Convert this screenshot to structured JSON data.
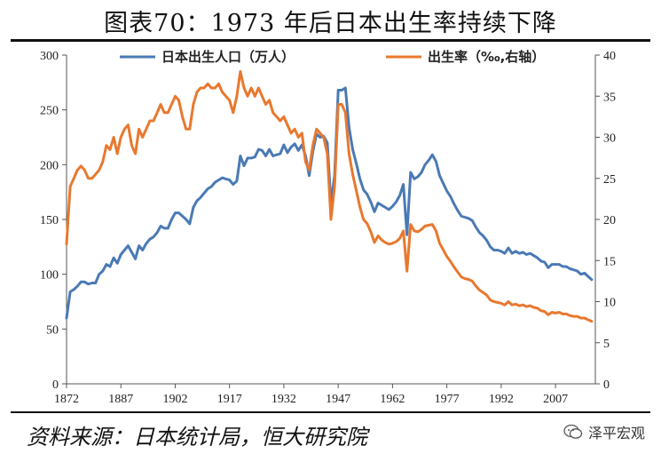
{
  "title": "图表70：1973 年后日本出生率持续下降",
  "source": "资料来源：日本统计局，恒大研究院",
  "watermark": "泽平宏观",
  "chart_data": {
    "type": "line",
    "left_axis": {
      "min": 0,
      "max": 300,
      "ticks": [
        "0",
        "50",
        "100",
        "150",
        "200",
        "250",
        "300"
      ]
    },
    "right_axis": {
      "min": 0,
      "max": 40,
      "ticks": [
        "0",
        "5",
        "10",
        "15",
        "20",
        "25",
        "30",
        "35",
        "40"
      ]
    },
    "x_axis": {
      "min": 1872,
      "max": 2018,
      "ticks": [
        "1872",
        "1887",
        "1902",
        "1917",
        "1932",
        "1947",
        "1962",
        "1977",
        "1992",
        "2007"
      ]
    },
    "grid": false,
    "legend_position": "top",
    "series": [
      {
        "name": "日本出生人口（万人）",
        "axis": "left",
        "color": "#4a7ab5",
        "points": [
          [
            1872,
            60
          ],
          [
            1873,
            84
          ],
          [
            1874,
            86
          ],
          [
            1875,
            89
          ],
          [
            1876,
            93
          ],
          [
            1877,
            93
          ],
          [
            1878,
            91
          ],
          [
            1879,
            92
          ],
          [
            1880,
            92
          ],
          [
            1881,
            100
          ],
          [
            1882,
            103
          ],
          [
            1883,
            109
          ],
          [
            1884,
            107
          ],
          [
            1885,
            115
          ],
          [
            1886,
            110
          ],
          [
            1887,
            118
          ],
          [
            1888,
            122
          ],
          [
            1889,
            126
          ],
          [
            1890,
            120
          ],
          [
            1891,
            114
          ],
          [
            1892,
            126
          ],
          [
            1893,
            122
          ],
          [
            1894,
            128
          ],
          [
            1895,
            132
          ],
          [
            1896,
            134
          ],
          [
            1897,
            138
          ],
          [
            1898,
            144
          ],
          [
            1899,
            142
          ],
          [
            1900,
            142
          ],
          [
            1901,
            150
          ],
          [
            1902,
            156
          ],
          [
            1903,
            156
          ],
          [
            1904,
            153
          ],
          [
            1905,
            150
          ],
          [
            1906,
            146
          ],
          [
            1907,
            161
          ],
          [
            1908,
            167
          ],
          [
            1909,
            170
          ],
          [
            1910,
            174
          ],
          [
            1911,
            178
          ],
          [
            1912,
            180
          ],
          [
            1913,
            184
          ],
          [
            1914,
            186
          ],
          [
            1915,
            188
          ],
          [
            1916,
            187
          ],
          [
            1917,
            186
          ],
          [
            1918,
            182
          ],
          [
            1919,
            185
          ],
          [
            1920,
            208
          ],
          [
            1921,
            199
          ],
          [
            1922,
            206
          ],
          [
            1923,
            206
          ],
          [
            1924,
            207
          ],
          [
            1925,
            214
          ],
          [
            1926,
            213
          ],
          [
            1927,
            208
          ],
          [
            1928,
            214
          ],
          [
            1929,
            208
          ],
          [
            1930,
            209
          ],
          [
            1931,
            210
          ],
          [
            1932,
            218
          ],
          [
            1933,
            211
          ],
          [
            1934,
            216
          ],
          [
            1935,
            219
          ],
          [
            1936,
            213
          ],
          [
            1937,
            218
          ],
          [
            1938,
            208
          ],
          [
            1939,
            190
          ],
          [
            1940,
            212
          ],
          [
            1941,
            228
          ],
          [
            1942,
            225
          ],
          [
            1943,
            226
          ],
          [
            1944,
            220
          ],
          [
            1945,
            165
          ],
          [
            1946,
            190
          ],
          [
            1947,
            268
          ],
          [
            1948,
            268
          ],
          [
            1949,
            270
          ],
          [
            1950,
            234
          ],
          [
            1951,
            214
          ],
          [
            1952,
            201
          ],
          [
            1953,
            187
          ],
          [
            1954,
            177
          ],
          [
            1955,
            173
          ],
          [
            1956,
            166
          ],
          [
            1957,
            157
          ],
          [
            1958,
            165
          ],
          [
            1959,
            163
          ],
          [
            1960,
            161
          ],
          [
            1961,
            159
          ],
          [
            1962,
            162
          ],
          [
            1963,
            166
          ],
          [
            1964,
            172
          ],
          [
            1965,
            182
          ],
          [
            1966,
            136
          ],
          [
            1967,
            193
          ],
          [
            1968,
            187
          ],
          [
            1969,
            189
          ],
          [
            1970,
            193
          ],
          [
            1971,
            200
          ],
          [
            1972,
            204
          ],
          [
            1973,
            209
          ],
          [
            1974,
            203
          ],
          [
            1975,
            190
          ],
          [
            1976,
            183
          ],
          [
            1977,
            176
          ],
          [
            1978,
            171
          ],
          [
            1979,
            164
          ],
          [
            1980,
            158
          ],
          [
            1981,
            153
          ],
          [
            1982,
            152
          ],
          [
            1983,
            151
          ],
          [
            1984,
            149
          ],
          [
            1985,
            143
          ],
          [
            1986,
            138
          ],
          [
            1987,
            135
          ],
          [
            1988,
            131
          ],
          [
            1989,
            125
          ],
          [
            1990,
            122
          ],
          [
            1991,
            122
          ],
          [
            1992,
            121
          ],
          [
            1993,
            119
          ],
          [
            1994,
            124
          ],
          [
            1995,
            119
          ],
          [
            1996,
            121
          ],
          [
            1997,
            119
          ],
          [
            1998,
            120
          ],
          [
            1999,
            118
          ],
          [
            2000,
            119
          ],
          [
            2001,
            117
          ],
          [
            2002,
            115
          ],
          [
            2003,
            112
          ],
          [
            2004,
            111
          ],
          [
            2005,
            106
          ],
          [
            2006,
            109
          ],
          [
            2007,
            109
          ],
          [
            2008,
            109
          ],
          [
            2009,
            107
          ],
          [
            2010,
            107
          ],
          [
            2011,
            105
          ],
          [
            2012,
            104
          ],
          [
            2013,
            103
          ],
          [
            2014,
            100
          ],
          [
            2015,
            101
          ],
          [
            2016,
            98
          ],
          [
            2017,
            95
          ]
        ]
      },
      {
        "name": "出生率（‰,右轴）",
        "axis": "right",
        "color": "#e8782e",
        "points": [
          [
            1872,
            17
          ],
          [
            1873,
            24
          ],
          [
            1874,
            25
          ],
          [
            1875,
            26
          ],
          [
            1876,
            26.5
          ],
          [
            1877,
            26
          ],
          [
            1878,
            25
          ],
          [
            1879,
            25
          ],
          [
            1880,
            25.5
          ],
          [
            1881,
            26
          ],
          [
            1882,
            27
          ],
          [
            1883,
            29
          ],
          [
            1884,
            28.5
          ],
          [
            1885,
            30
          ],
          [
            1886,
            28
          ],
          [
            1887,
            30
          ],
          [
            1888,
            31
          ],
          [
            1889,
            31.5
          ],
          [
            1890,
            29
          ],
          [
            1891,
            28
          ],
          [
            1892,
            31
          ],
          [
            1893,
            30
          ],
          [
            1894,
            31
          ],
          [
            1895,
            32
          ],
          [
            1896,
            32
          ],
          [
            1897,
            33
          ],
          [
            1898,
            34
          ],
          [
            1899,
            33
          ],
          [
            1900,
            33
          ],
          [
            1901,
            34
          ],
          [
            1902,
            35
          ],
          [
            1903,
            34.5
          ],
          [
            1904,
            32.5
          ],
          [
            1905,
            31
          ],
          [
            1906,
            31
          ],
          [
            1907,
            34
          ],
          [
            1908,
            35.5
          ],
          [
            1909,
            36
          ],
          [
            1910,
            36
          ],
          [
            1911,
            36.5
          ],
          [
            1912,
            36
          ],
          [
            1913,
            36
          ],
          [
            1914,
            36.5
          ],
          [
            1915,
            35.5
          ],
          [
            1916,
            35
          ],
          [
            1917,
            34.5
          ],
          [
            1918,
            33
          ],
          [
            1919,
            35
          ],
          [
            1920,
            38
          ],
          [
            1921,
            36
          ],
          [
            1922,
            35
          ],
          [
            1923,
            36
          ],
          [
            1924,
            35
          ],
          [
            1925,
            36
          ],
          [
            1926,
            35
          ],
          [
            1927,
            34
          ],
          [
            1928,
            34.5
          ],
          [
            1929,
            33
          ],
          [
            1930,
            32.5
          ],
          [
            1931,
            32
          ],
          [
            1932,
            32.5
          ],
          [
            1933,
            31.5
          ],
          [
            1934,
            30.5
          ],
          [
            1935,
            31
          ],
          [
            1936,
            30
          ],
          [
            1937,
            30.5
          ],
          [
            1938,
            27
          ],
          [
            1939,
            26
          ],
          [
            1940,
            29
          ],
          [
            1941,
            31
          ],
          [
            1942,
            30.5
          ],
          [
            1943,
            30
          ],
          [
            1944,
            28
          ],
          [
            1945,
            20
          ],
          [
            1946,
            24
          ],
          [
            1947,
            34
          ],
          [
            1948,
            34
          ],
          [
            1949,
            33
          ],
          [
            1950,
            28
          ],
          [
            1951,
            25.5
          ],
          [
            1952,
            23.5
          ],
          [
            1953,
            21.5
          ],
          [
            1954,
            20
          ],
          [
            1955,
            19.5
          ],
          [
            1956,
            18.5
          ],
          [
            1957,
            17.2
          ],
          [
            1958,
            18
          ],
          [
            1959,
            17.5
          ],
          [
            1960,
            17.2
          ],
          [
            1961,
            17
          ],
          [
            1962,
            17.1
          ],
          [
            1963,
            17.3
          ],
          [
            1964,
            17.7
          ],
          [
            1965,
            18.6
          ],
          [
            1966,
            13.7
          ],
          [
            1967,
            19.4
          ],
          [
            1968,
            18.6
          ],
          [
            1969,
            18.5
          ],
          [
            1970,
            18.8
          ],
          [
            1971,
            19.2
          ],
          [
            1972,
            19.3
          ],
          [
            1973,
            19.4
          ],
          [
            1974,
            18.6
          ],
          [
            1975,
            17.1
          ],
          [
            1976,
            16.3
          ],
          [
            1977,
            15.5
          ],
          [
            1978,
            14.9
          ],
          [
            1979,
            14.2
          ],
          [
            1980,
            13.6
          ],
          [
            1981,
            13
          ],
          [
            1982,
            12.8
          ],
          [
            1983,
            12.7
          ],
          [
            1984,
            12.5
          ],
          [
            1985,
            11.9
          ],
          [
            1986,
            11.4
          ],
          [
            1987,
            11.1
          ],
          [
            1988,
            10.8
          ],
          [
            1989,
            10.2
          ],
          [
            1990,
            10
          ],
          [
            1991,
            9.9
          ],
          [
            1992,
            9.8
          ],
          [
            1993,
            9.6
          ],
          [
            1994,
            10
          ],
          [
            1995,
            9.6
          ],
          [
            1996,
            9.7
          ],
          [
            1997,
            9.5
          ],
          [
            1998,
            9.6
          ],
          [
            1999,
            9.4
          ],
          [
            2000,
            9.5
          ],
          [
            2001,
            9.3
          ],
          [
            2002,
            9.2
          ],
          [
            2003,
            8.9
          ],
          [
            2004,
            8.8
          ],
          [
            2005,
            8.4
          ],
          [
            2006,
            8.7
          ],
          [
            2007,
            8.6
          ],
          [
            2008,
            8.7
          ],
          [
            2009,
            8.5
          ],
          [
            2010,
            8.5
          ],
          [
            2011,
            8.3
          ],
          [
            2012,
            8.2
          ],
          [
            2013,
            8.2
          ],
          [
            2014,
            8
          ],
          [
            2015,
            8
          ],
          [
            2016,
            7.8
          ],
          [
            2017,
            7.6
          ]
        ]
      }
    ]
  }
}
